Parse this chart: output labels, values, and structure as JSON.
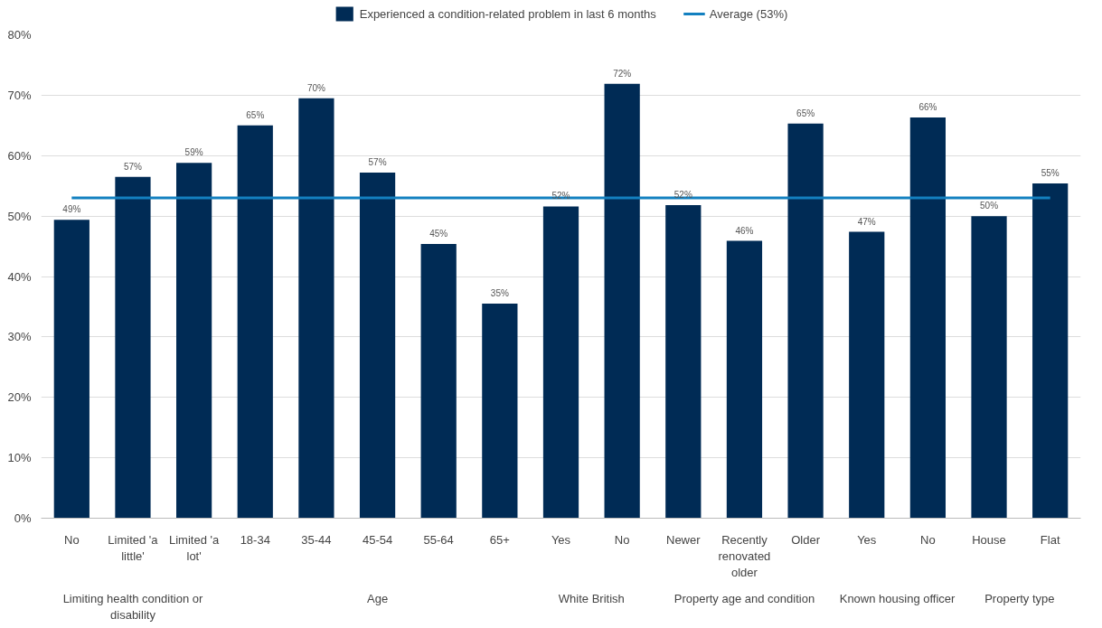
{
  "chart_data": {
    "type": "bar",
    "categories": [
      "No",
      "Limited 'a little'",
      "Limited 'a lot'",
      "18-34",
      "35-44",
      "45-54",
      "55-64",
      "65+",
      "Yes",
      "No",
      "Newer",
      "Recently renovated older",
      "Older",
      "Yes",
      "No",
      "House",
      "Flat"
    ],
    "series": [
      {
        "name": "Experienced a condition-related problem in last 6 months",
        "color": "#002b55",
        "values": [
          49.4,
          56.5,
          58.8,
          65.0,
          69.5,
          57.2,
          45.4,
          35.5,
          51.6,
          71.9,
          51.8,
          45.9,
          65.3,
          47.4,
          66.3,
          50.0,
          55.4
        ],
        "value_labels": [
          "49%",
          "57%",
          "59%",
          "65%",
          "70%",
          "57%",
          "45%",
          "35%",
          "52%",
          "72%",
          "52%",
          "46%",
          "65%",
          "47%",
          "66%",
          "50%",
          "55%"
        ]
      }
    ],
    "ref_lines": [
      {
        "axis": "y",
        "value": 53,
        "label": "Average (53%)",
        "color": "#1380c0"
      }
    ],
    "annotations": [
      "Limiting health condition or disability",
      "Age",
      "White British",
      "Property age and condition",
      "Known housing officer",
      "Property type"
    ],
    "ylim": [
      0,
      80
    ],
    "yticks": [
      {
        "value": 0,
        "label": "0%"
      },
      {
        "value": 10,
        "label": "10%"
      },
      {
        "value": 20,
        "label": "20%"
      },
      {
        "value": 30,
        "label": "30%"
      },
      {
        "value": 40,
        "label": "40%"
      },
      {
        "value": 50,
        "label": "50%"
      },
      {
        "value": 60,
        "label": "60%"
      },
      {
        "value": 70,
        "label": "70%"
      },
      {
        "value": 80,
        "label": "80%"
      }
    ],
    "grid": "y",
    "legend": "top"
  }
}
